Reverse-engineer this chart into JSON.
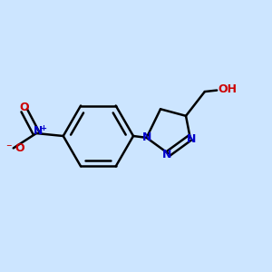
{
  "background_color": "#cce5ff",
  "bond_color": "#000000",
  "n_color": "#0000cc",
  "o_color": "#cc0000",
  "atom_colors": {
    "N": "#0000cc",
    "O": "#cc0000",
    "C": "#000000"
  },
  "figsize": [
    3.0,
    3.0
  ],
  "dpi": 100
}
